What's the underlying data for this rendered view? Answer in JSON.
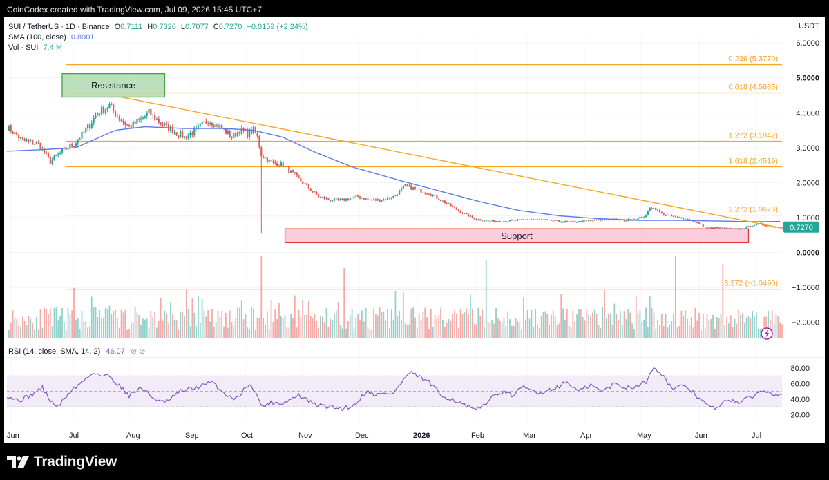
{
  "header": {
    "credit": "CoinCodex created with TradingView.com, Jul 09, 2026 15:45 UTC+7"
  },
  "footer": {
    "brand": "TradingView",
    "logo_icon": "tradingview-logo-icon"
  },
  "colors": {
    "up": "#26a69a",
    "down": "#ef5350",
    "sma": "#5b7ce8",
    "fib": "#f5a623",
    "trend": "#f5a623",
    "rsi": "#7e57c2",
    "rsi_band": "#ede7f6",
    "resistance_fill": "#a5d6a7",
    "support_fill": "#f8bbd0",
    "price_label": "#26a69a"
  },
  "legend": {
    "symbol": "SUI / TetherUS · 1D · Binance",
    "o_label": "O",
    "o": "0.7111",
    "h_label": "H",
    "h": "0.7326",
    "l_label": "L",
    "l": "0.7077",
    "c_label": "C",
    "c": "0.7270",
    "change": "+0.0159 (+2.24%)",
    "sma_label": "SMA (100, close)",
    "sma_value": "0.8901",
    "vol_label": "Vol · SUI",
    "vol_value": "7.4 M"
  },
  "chart_data": [
    {
      "type": "candlestick",
      "title": "SUI / TetherUS · 1D · Binance",
      "currency": "USDT",
      "x_labels": [
        "Jun",
        "Jul",
        "Aug",
        "Sep",
        "Oct",
        "Nov",
        "Dec",
        "2026",
        "Feb",
        "Mar",
        "Apr",
        "May",
        "Jun",
        "Jul"
      ],
      "y_ticks": [
        "6.0000",
        "5.0000",
        "4.0000",
        "3.0000",
        "2.0000",
        "1.0000",
        "0.0000",
        "−1.0000",
        "−2.0000"
      ],
      "ylim": [
        -2.5,
        6.2
      ],
      "price_path": [
        [
          0,
          3.6
        ],
        [
          8,
          3.2
        ],
        [
          16,
          3.1
        ],
        [
          22,
          2.6
        ],
        [
          28,
          2.9
        ],
        [
          34,
          3.1
        ],
        [
          40,
          3.5
        ],
        [
          46,
          4.0
        ],
        [
          52,
          4.2
        ],
        [
          56,
          3.9
        ],
        [
          62,
          3.6
        ],
        [
          68,
          3.8
        ],
        [
          72,
          4.0
        ],
        [
          78,
          3.7
        ],
        [
          84,
          3.5
        ],
        [
          90,
          3.3
        ],
        [
          96,
          3.5
        ],
        [
          102,
          3.8
        ],
        [
          108,
          3.6
        ],
        [
          114,
          3.3
        ],
        [
          118,
          3.5
        ],
        [
          122,
          3.4
        ],
        [
          125,
          3.5
        ],
        [
          127,
          3.3
        ],
        [
          129,
          2.8
        ],
        [
          133,
          2.6
        ],
        [
          140,
          2.5
        ],
        [
          146,
          2.2
        ],
        [
          152,
          1.9
        ],
        [
          158,
          1.6
        ],
        [
          164,
          1.5
        ],
        [
          170,
          1.5
        ],
        [
          178,
          1.6
        ],
        [
          184,
          1.5
        ],
        [
          190,
          1.5
        ],
        [
          196,
          1.6
        ],
        [
          202,
          1.9
        ],
        [
          208,
          1.8
        ],
        [
          214,
          1.7
        ],
        [
          220,
          1.5
        ],
        [
          226,
          1.3
        ],
        [
          232,
          1.1
        ],
        [
          238,
          0.95
        ],
        [
          244,
          0.9
        ],
        [
          250,
          0.9
        ],
        [
          258,
          0.92
        ],
        [
          266,
          0.95
        ],
        [
          274,
          0.92
        ],
        [
          282,
          0.88
        ],
        [
          290,
          0.88
        ],
        [
          298,
          0.92
        ],
        [
          306,
          0.95
        ],
        [
          314,
          0.92
        ],
        [
          320,
          0.98
        ],
        [
          324,
          1.05
        ],
        [
          326,
          1.3
        ],
        [
          329,
          1.25
        ],
        [
          332,
          1.1
        ],
        [
          336,
          1.05
        ],
        [
          340,
          1.0
        ],
        [
          346,
          0.95
        ],
        [
          350,
          0.85
        ],
        [
          354,
          0.72
        ],
        [
          358,
          0.7
        ],
        [
          362,
          0.72
        ],
        [
          366,
          0.68
        ],
        [
          370,
          0.66
        ],
        [
          374,
          0.7
        ],
        [
          378,
          0.78
        ],
        [
          382,
          0.82
        ],
        [
          386,
          0.75
        ],
        [
          390,
          0.73
        ],
        [
          393,
          0.727
        ]
      ],
      "low_wick": {
        "day": 129,
        "low": 0.55
      },
      "last_price_label": "0.7270",
      "sma": [
        [
          0,
          2.9
        ],
        [
          20,
          2.95
        ],
        [
          35,
          3.0
        ],
        [
          45,
          3.25
        ],
        [
          55,
          3.5
        ],
        [
          70,
          3.6
        ],
        [
          90,
          3.55
        ],
        [
          110,
          3.55
        ],
        [
          125,
          3.5
        ],
        [
          140,
          3.3
        ],
        [
          155,
          2.9
        ],
        [
          175,
          2.45
        ],
        [
          200,
          2.05
        ],
        [
          220,
          1.75
        ],
        [
          240,
          1.45
        ],
        [
          260,
          1.2
        ],
        [
          280,
          1.05
        ],
        [
          300,
          0.97
        ],
        [
          320,
          0.92
        ],
        [
          340,
          0.92
        ],
        [
          360,
          0.9
        ],
        [
          380,
          0.88
        ],
        [
          393,
          0.89
        ]
      ],
      "trendline": [
        [
          58,
          4.45
        ],
        [
          393,
          0.7
        ]
      ],
      "fib_levels": [
        {
          "label": "0.236 (5.3770)",
          "value": 5.377
        },
        {
          "label": "0.618 (4.5685)",
          "value": 4.5685
        },
        {
          "label": "1.272 (3.1842)",
          "value": 3.1842
        },
        {
          "label": "1.618 (2.4519)",
          "value": 2.4519
        },
        {
          "label": "2.272 (1.0676)",
          "value": 1.0676
        },
        {
          "label": "3.272 (−1.0490)",
          "value": -1.049
        }
      ],
      "zones": [
        {
          "label": "Resistance",
          "day_start": 28,
          "day_end": 80,
          "y_low": 4.45,
          "y_high": 5.12,
          "kind": "resistance"
        },
        {
          "label": "Support",
          "day_start": 141,
          "day_end": 376,
          "y_low": 0.28,
          "y_high": 0.68,
          "kind": "support"
        }
      ]
    },
    {
      "type": "bar",
      "title": "Vol · SUI",
      "spikes": [
        [
          129,
          1.0
        ],
        [
          171,
          0.85
        ],
        [
          243,
          0.95
        ],
        [
          339,
          1.0
        ],
        [
          363,
          0.9
        ]
      ]
    },
    {
      "type": "line",
      "title": "RSI (14, close, SMA, 14, 2)",
      "current": "46.07",
      "y_ticks": [
        "80.00",
        "60.00",
        "40.00",
        "20.00"
      ],
      "ylim": [
        15,
        90
      ],
      "band": [
        30,
        70
      ],
      "series": [
        {
          "values": [
            [
              0,
              45
            ],
            [
              6,
              38
            ],
            [
              12,
              45
            ],
            [
              18,
              55
            ],
            [
              22,
              38
            ],
            [
              26,
              30
            ],
            [
              32,
              50
            ],
            [
              38,
              62
            ],
            [
              44,
              75
            ],
            [
              48,
              70
            ],
            [
              52,
              70
            ],
            [
              56,
              60
            ],
            [
              62,
              45
            ],
            [
              68,
              55
            ],
            [
              74,
              42
            ],
            [
              80,
              35
            ],
            [
              88,
              50
            ],
            [
              96,
              55
            ],
            [
              104,
              62
            ],
            [
              110,
              48
            ],
            [
              116,
              40
            ],
            [
              122,
              58
            ],
            [
              126,
              52
            ],
            [
              129,
              30
            ],
            [
              134,
              36
            ],
            [
              140,
              35
            ],
            [
              148,
              45
            ],
            [
              156,
              33
            ],
            [
              164,
              30
            ],
            [
              170,
              28
            ],
            [
              176,
              32
            ],
            [
              182,
              50
            ],
            [
              188,
              46
            ],
            [
              196,
              48
            ],
            [
              204,
              74
            ],
            [
              208,
              70
            ],
            [
              214,
              62
            ],
            [
              220,
              45
            ],
            [
              226,
              40
            ],
            [
              232,
              32
            ],
            [
              238,
              25
            ],
            [
              244,
              38
            ],
            [
              250,
              50
            ],
            [
              256,
              45
            ],
            [
              262,
              55
            ],
            [
              270,
              48
            ],
            [
              278,
              55
            ],
            [
              284,
              62
            ],
            [
              290,
              50
            ],
            [
              296,
              58
            ],
            [
              302,
              50
            ],
            [
              308,
              60
            ],
            [
              314,
              55
            ],
            [
              320,
              58
            ],
            [
              324,
              62
            ],
            [
              328,
              83
            ],
            [
              332,
              72
            ],
            [
              338,
              52
            ],
            [
              344,
              58
            ],
            [
              350,
              44
            ],
            [
              356,
              30
            ],
            [
              360,
              28
            ],
            [
              366,
              40
            ],
            [
              372,
              36
            ],
            [
              378,
              44
            ],
            [
              384,
              52
            ],
            [
              388,
              48
            ],
            [
              393,
              46.07
            ]
          ]
        }
      ]
    }
  ]
}
